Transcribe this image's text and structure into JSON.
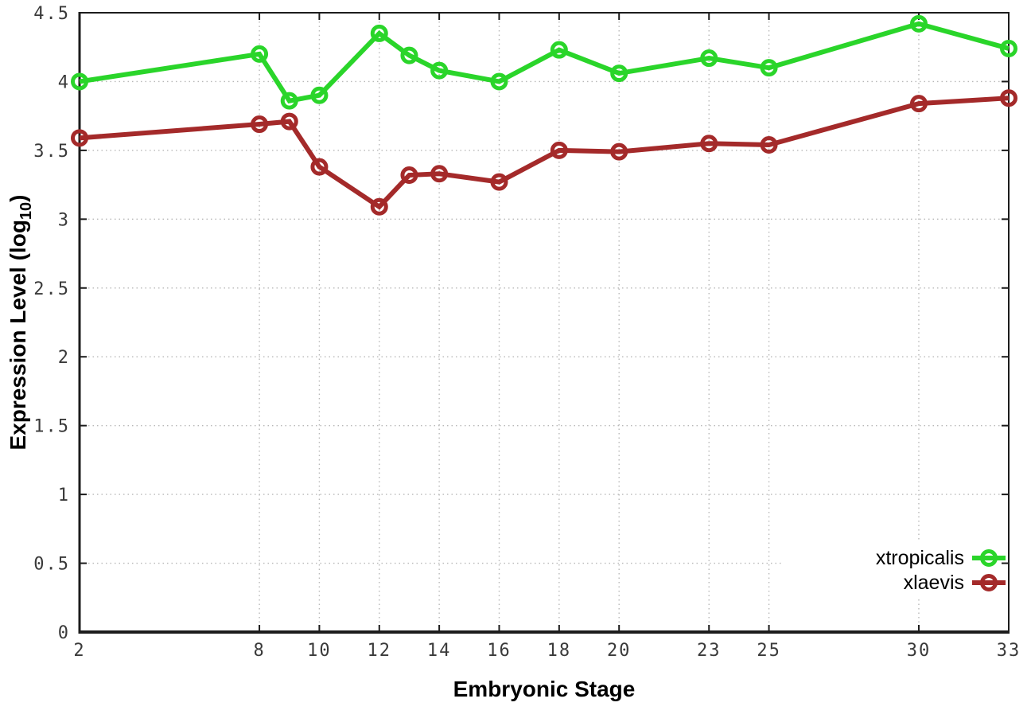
{
  "figure": {
    "xlabel": "Embryonic Stage",
    "ylabel_main": "Expression Level (log",
    "ylabel_sub": "10",
    "ylabel_close": ")"
  },
  "colors": {
    "xtropicalis": "#2ad52a",
    "xlaevis": "#a42a2a",
    "grid": "#b8b8b8",
    "axis": "#1c1c1c",
    "tick_label": "#3a3a3a"
  },
  "chart_data": {
    "type": "line",
    "title": "",
    "xlabel": "Embryonic Stage",
    "ylabel": "Expression Level (log10)",
    "xlim": [
      2,
      33
    ],
    "ylim": [
      0,
      4.5
    ],
    "xticks": [
      2,
      8,
      10,
      12,
      14,
      16,
      18,
      20,
      23,
      25,
      30,
      33
    ],
    "yticks": [
      0,
      0.5,
      1,
      1.5,
      2,
      2.5,
      3,
      3.5,
      4,
      4.5
    ],
    "grid": true,
    "legend_position": "inside-right-bottom",
    "x": [
      2,
      8,
      9,
      10,
      12,
      13,
      14,
      16,
      18,
      20,
      23,
      25,
      30,
      33
    ],
    "series": [
      {
        "name": "xtropicalis",
        "color": "#2ad52a",
        "values": [
          4.0,
          4.2,
          3.86,
          3.9,
          4.35,
          4.19,
          4.08,
          4.0,
          4.23,
          4.06,
          4.17,
          4.1,
          4.42,
          4.24
        ]
      },
      {
        "name": "xlaevis",
        "color": "#a42a2a",
        "values": [
          3.59,
          3.69,
          3.71,
          3.38,
          3.09,
          3.32,
          3.33,
          3.27,
          3.5,
          3.49,
          3.55,
          3.54,
          3.84,
          3.88
        ]
      }
    ]
  }
}
